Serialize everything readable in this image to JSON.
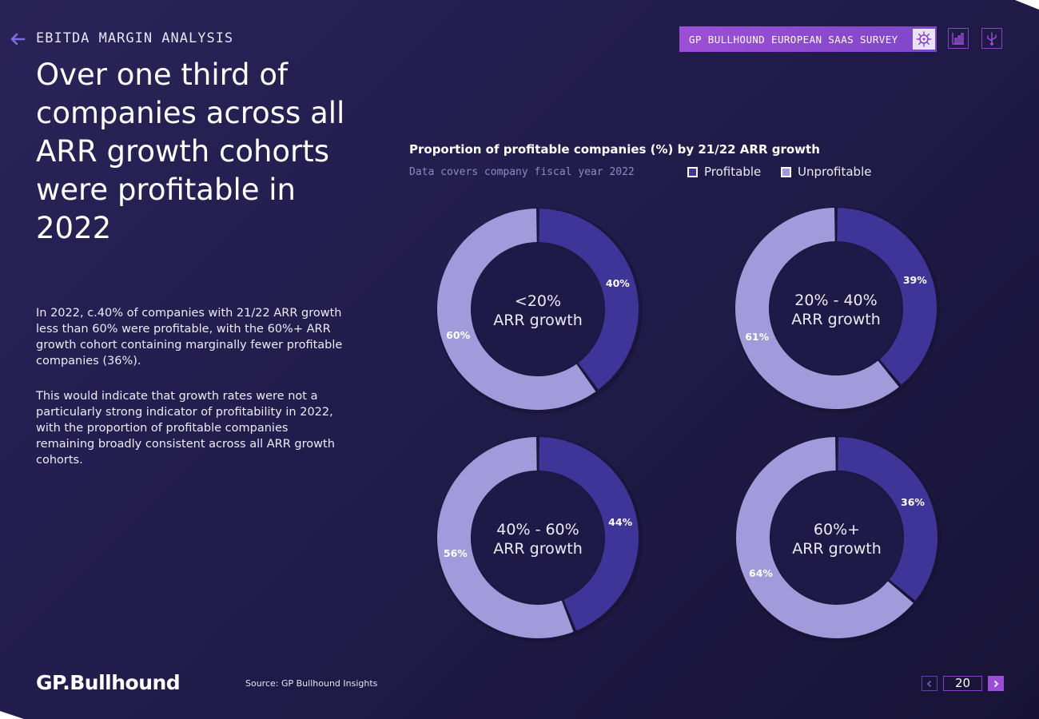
{
  "header": {
    "section_title": "EBITDA MARGIN ANALYSIS",
    "survey_label": "GP BULLHOUND EUROPEAN SAAS SURVEY"
  },
  "headline": "Over one third of companies across all ARR growth cohorts were profitable in 2022",
  "body": {
    "p1": "In 2022, c.40% of companies with 21/22 ARR growth less than 60% were profitable, with the 60%+ ARR growth cohort containing marginally fewer profitable companies (36%).",
    "p2": "This would indicate that growth rates were not a particularly strong indicator of profitability in 2022, with the proportion of profitable companies remaining broadly consistent across all ARR growth cohorts."
  },
  "chart_data": {
    "type": "pie",
    "variant": "donut",
    "title": "Proportion of profitable companies (%) by 21/22 ARR growth",
    "subtitle": "Data covers company fiscal year 2022",
    "legend": [
      "Profitable",
      "Unprofitable"
    ],
    "colors": {
      "profitable": "#3f3498",
      "unprofitable": "#a29bdb"
    },
    "charts": [
      {
        "label_line1": "<20%",
        "label_line2": "ARR growth",
        "profitable": 40,
        "unprofitable": 60,
        "profitable_label": "40%",
        "unprofitable_label": "60%"
      },
      {
        "label_line1": "20% - 40%",
        "label_line2": "ARR growth",
        "profitable": 39,
        "unprofitable": 61,
        "profitable_label": "39%",
        "unprofitable_label": "61%"
      },
      {
        "label_line1": "40% - 60%",
        "label_line2": "ARR growth",
        "profitable": 44,
        "unprofitable": 56,
        "profitable_label": "44%",
        "unprofitable_label": "56%"
      },
      {
        "label_line1": "60%+",
        "label_line2": "ARR growth",
        "profitable": 36,
        "unprofitable": 64,
        "profitable_label": "36%",
        "unprofitable_label": "64%"
      }
    ]
  },
  "footer": {
    "logo": "GP.Bullhound",
    "source": "Source: GP Bullhound Insights",
    "page_number": "20"
  },
  "icons": {
    "back": "arrow-left-icon",
    "survey": "virus-icon",
    "chart": "bar-chart-icon",
    "share": "usb-icon",
    "prev": "chevron-left-icon",
    "next": "chevron-right-icon"
  }
}
